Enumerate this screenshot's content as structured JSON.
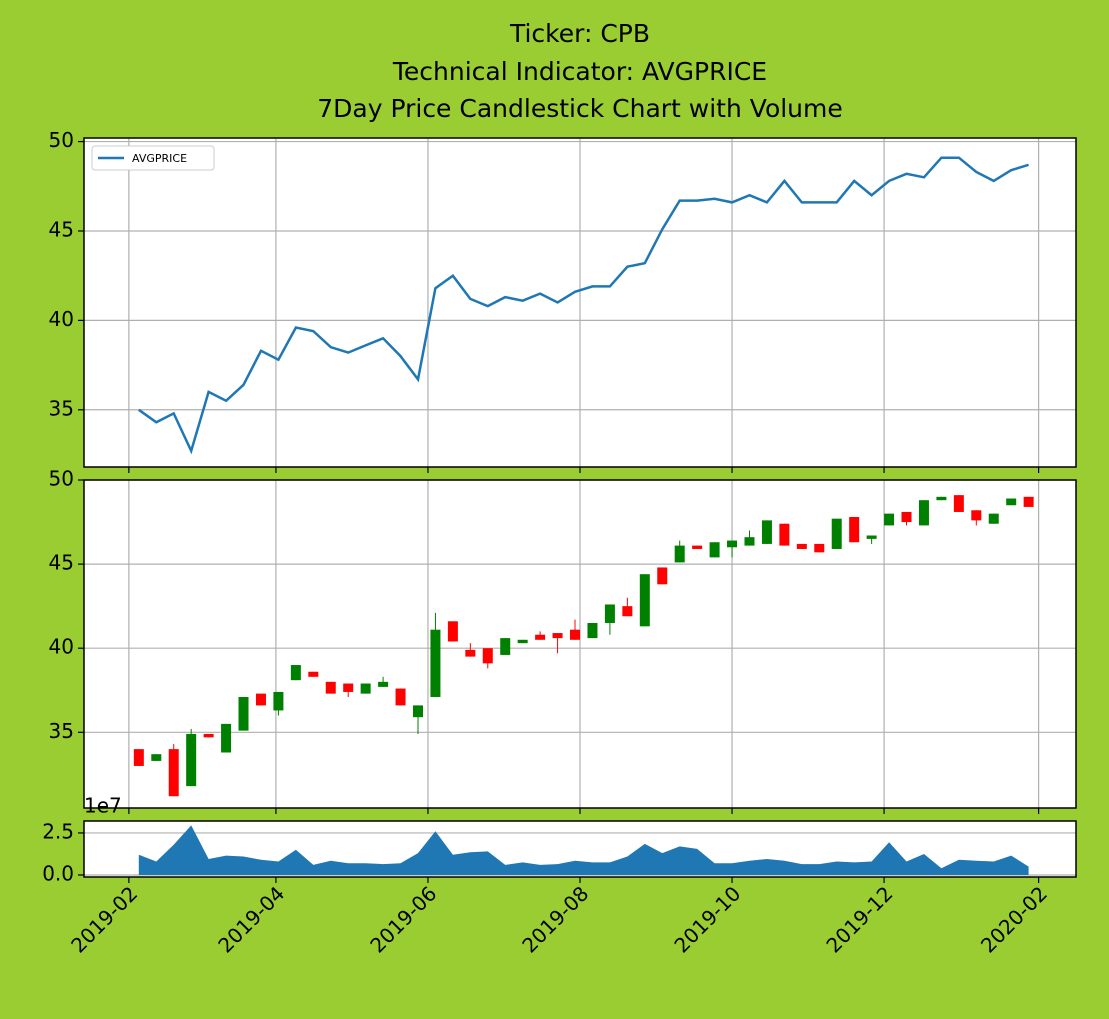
{
  "chart_data": [
    {
      "type": "line",
      "title": [
        "Ticker: CPB",
        "Technical Indicator: AVGPRICE",
        "7Day Price Candlestick Chart with Volume"
      ],
      "legend": "upper left",
      "grid": true,
      "xlim": [
        "2019-01-14",
        "2020-02-16"
      ],
      "xticks": [
        "2019-02",
        "2019-04",
        "2019-06",
        "2019-08",
        "2019-10",
        "2019-12",
        "2020-02"
      ],
      "ylim": [
        31.8,
        50.2
      ],
      "yticks": [
        50,
        45,
        40,
        35
      ],
      "x": [
        "2019-02-05",
        "2019-02-12",
        "2019-02-19",
        "2019-02-26",
        "2019-03-05",
        "2019-03-12",
        "2019-03-19",
        "2019-03-26",
        "2019-04-02",
        "2019-04-09",
        "2019-04-16",
        "2019-04-23",
        "2019-04-30",
        "2019-05-07",
        "2019-05-14",
        "2019-05-21",
        "2019-05-28",
        "2019-06-04",
        "2019-06-11",
        "2019-06-18",
        "2019-06-25",
        "2019-07-02",
        "2019-07-09",
        "2019-07-16",
        "2019-07-23",
        "2019-07-30",
        "2019-08-06",
        "2019-08-13",
        "2019-08-20",
        "2019-08-27",
        "2019-09-03",
        "2019-09-10",
        "2019-09-17",
        "2019-09-24",
        "2019-10-01",
        "2019-10-08",
        "2019-10-15",
        "2019-10-22",
        "2019-10-29",
        "2019-11-05",
        "2019-11-12",
        "2019-11-19",
        "2019-11-26",
        "2019-12-03",
        "2019-12-10",
        "2019-12-17",
        "2019-12-24",
        "2019-12-31",
        "2020-01-07",
        "2020-01-14",
        "2020-01-21",
        "2020-01-28"
      ],
      "series": [
        {
          "name": "AVGPRICE",
          "color": "#1f77b4",
          "values": [
            35.0,
            34.3,
            34.8,
            32.7,
            36.0,
            35.5,
            36.4,
            38.3,
            37.8,
            39.6,
            39.4,
            38.5,
            38.2,
            38.6,
            39.0,
            38.0,
            36.7,
            41.8,
            42.5,
            41.2,
            40.8,
            41.3,
            41.1,
            41.5,
            41.0,
            41.6,
            41.9,
            41.9,
            43.0,
            43.2,
            45.1,
            46.7,
            46.7,
            46.8,
            46.6,
            47.0,
            46.6,
            47.8,
            46.6,
            46.6,
            46.6,
            47.8,
            47.0,
            47.8,
            48.2,
            48.0,
            49.1,
            49.1,
            48.3,
            47.8,
            48.4,
            48.7
          ]
        }
      ]
    },
    {
      "type": "candlestick",
      "grid": true,
      "xlim": [
        "2019-01-14",
        "2020-02-16"
      ],
      "xticks": [
        "2019-02",
        "2019-04",
        "2019-06",
        "2019-08",
        "2019-10",
        "2019-12",
        "2020-02"
      ],
      "ylim": [
        30.5,
        50
      ],
      "yticks": [
        50,
        45,
        40,
        35
      ],
      "up_color": "green",
      "down_color": "red",
      "x": [
        "2019-02-05",
        "2019-02-12",
        "2019-02-19",
        "2019-02-26",
        "2019-03-05",
        "2019-03-12",
        "2019-03-19",
        "2019-03-26",
        "2019-04-02",
        "2019-04-09",
        "2019-04-16",
        "2019-04-23",
        "2019-04-30",
        "2019-05-07",
        "2019-05-14",
        "2019-05-21",
        "2019-05-28",
        "2019-06-04",
        "2019-06-11",
        "2019-06-18",
        "2019-06-25",
        "2019-07-02",
        "2019-07-09",
        "2019-07-16",
        "2019-07-23",
        "2019-07-30",
        "2019-08-06",
        "2019-08-13",
        "2019-08-20",
        "2019-08-27",
        "2019-09-03",
        "2019-09-10",
        "2019-09-17",
        "2019-09-24",
        "2019-10-01",
        "2019-10-08",
        "2019-10-15",
        "2019-10-22",
        "2019-10-29",
        "2019-11-05",
        "2019-11-12",
        "2019-11-19",
        "2019-11-26",
        "2019-12-03",
        "2019-12-10",
        "2019-12-17",
        "2019-12-24",
        "2019-12-31",
        "2020-01-07",
        "2020-01-14",
        "2020-01-21",
        "2020-01-28"
      ],
      "open": [
        34.0,
        33.3,
        34.0,
        31.8,
        34.9,
        33.8,
        35.1,
        37.3,
        36.3,
        38.1,
        38.6,
        38.0,
        37.9,
        37.3,
        37.7,
        37.6,
        35.9,
        37.1,
        41.6,
        39.9,
        40.0,
        39.6,
        40.3,
        40.8,
        40.9,
        41.1,
        40.6,
        41.5,
        42.5,
        41.3,
        44.8,
        45.1,
        46.1,
        45.4,
        46.0,
        46.1,
        46.2,
        47.4,
        46.2,
        46.2,
        45.9,
        47.8,
        46.5,
        47.3,
        48.1,
        47.3,
        48.8,
        49.1,
        48.2,
        47.4,
        48.5,
        49.0
      ],
      "high": [
        34.0,
        33.7,
        34.3,
        35.2,
        34.9,
        35.5,
        37.1,
        37.3,
        37.4,
        39.0,
        38.6,
        38.0,
        37.9,
        37.9,
        38.3,
        37.6,
        36.6,
        42.1,
        41.6,
        40.3,
        40.0,
        40.6,
        40.5,
        41.0,
        40.9,
        41.7,
        41.5,
        42.6,
        43.0,
        44.4,
        44.8,
        46.4,
        46.1,
        46.3,
        46.4,
        47.0,
        47.6,
        47.4,
        46.2,
        46.2,
        47.7,
        47.8,
        46.7,
        48.0,
        48.1,
        48.8,
        49.0,
        49.1,
        48.2,
        48.0,
        48.9,
        49.0
      ],
      "low": [
        33.0,
        33.3,
        31.2,
        31.8,
        34.7,
        33.8,
        35.1,
        36.6,
        36.0,
        38.1,
        38.3,
        37.3,
        37.1,
        37.3,
        37.7,
        36.6,
        34.9,
        37.1,
        40.4,
        39.5,
        38.8,
        39.6,
        40.3,
        40.5,
        39.7,
        40.5,
        40.6,
        40.8,
        41.9,
        41.3,
        43.8,
        45.1,
        45.9,
        45.4,
        45.4,
        46.1,
        46.2,
        46.1,
        45.9,
        45.7,
        45.9,
        46.3,
        46.2,
        47.3,
        47.3,
        47.3,
        48.8,
        48.1,
        47.3,
        47.4,
        48.5,
        48.4
      ],
      "close": [
        33.0,
        33.7,
        31.2,
        34.9,
        34.7,
        35.5,
        37.1,
        36.6,
        37.4,
        39.0,
        38.3,
        37.3,
        37.4,
        37.9,
        38.0,
        36.6,
        36.6,
        41.1,
        40.4,
        39.5,
        39.1,
        40.6,
        40.5,
        40.5,
        40.6,
        40.5,
        41.5,
        42.6,
        41.9,
        44.4,
        43.8,
        46.1,
        45.9,
        46.3,
        46.4,
        46.6,
        47.6,
        46.1,
        45.9,
        45.7,
        47.7,
        46.3,
        46.7,
        48.0,
        47.5,
        48.8,
        49.0,
        48.1,
        47.6,
        48.0,
        48.9,
        48.4
      ]
    },
    {
      "type": "area",
      "grid": "y",
      "offset_label": "1e7",
      "xlim": [
        "2019-01-14",
        "2020-02-16"
      ],
      "xticks": [
        "2019-02",
        "2019-04",
        "2019-06",
        "2019-08",
        "2019-10",
        "2019-12",
        "2020-02"
      ],
      "ylim": [
        -0.12,
        3.21
      ],
      "yticks": [
        {
          "value": 2.5,
          "label": "2.5"
        },
        {
          "value": 0,
          "label": "0.0"
        }
      ],
      "x": [
        "2019-02-05",
        "2019-02-12",
        "2019-02-19",
        "2019-02-26",
        "2019-03-05",
        "2019-03-12",
        "2019-03-19",
        "2019-03-26",
        "2019-04-02",
        "2019-04-09",
        "2019-04-16",
        "2019-04-23",
        "2019-04-30",
        "2019-05-07",
        "2019-05-14",
        "2019-05-21",
        "2019-05-28",
        "2019-06-04",
        "2019-06-11",
        "2019-06-18",
        "2019-06-25",
        "2019-07-02",
        "2019-07-09",
        "2019-07-16",
        "2019-07-23",
        "2019-07-30",
        "2019-08-06",
        "2019-08-13",
        "2019-08-20",
        "2019-08-27",
        "2019-09-03",
        "2019-09-10",
        "2019-09-17",
        "2019-09-24",
        "2019-10-01",
        "2019-10-08",
        "2019-10-15",
        "2019-10-22",
        "2019-10-29",
        "2019-11-05",
        "2019-11-12",
        "2019-11-19",
        "2019-11-26",
        "2019-12-03",
        "2019-12-10",
        "2019-12-17",
        "2019-12-24",
        "2019-12-31",
        "2020-01-07",
        "2020-01-14",
        "2020-01-21",
        "2020-01-28"
      ],
      "color": "#1f77b4",
      "values": [
        1.2,
        0.8,
        1.8,
        2.95,
        0.95,
        1.15,
        1.1,
        0.9,
        0.8,
        1.5,
        0.6,
        0.85,
        0.7,
        0.7,
        0.65,
        0.7,
        1.3,
        2.6,
        1.2,
        1.35,
        1.4,
        0.6,
        0.75,
        0.6,
        0.65,
        0.85,
        0.75,
        0.75,
        1.1,
        1.85,
        1.3,
        1.7,
        1.55,
        0.7,
        0.7,
        0.85,
        0.95,
        0.85,
        0.65,
        0.65,
        0.8,
        0.75,
        0.8,
        1.95,
        0.8,
        1.25,
        0.4,
        0.9,
        0.85,
        0.8,
        1.15,
        0.5
      ]
    }
  ]
}
